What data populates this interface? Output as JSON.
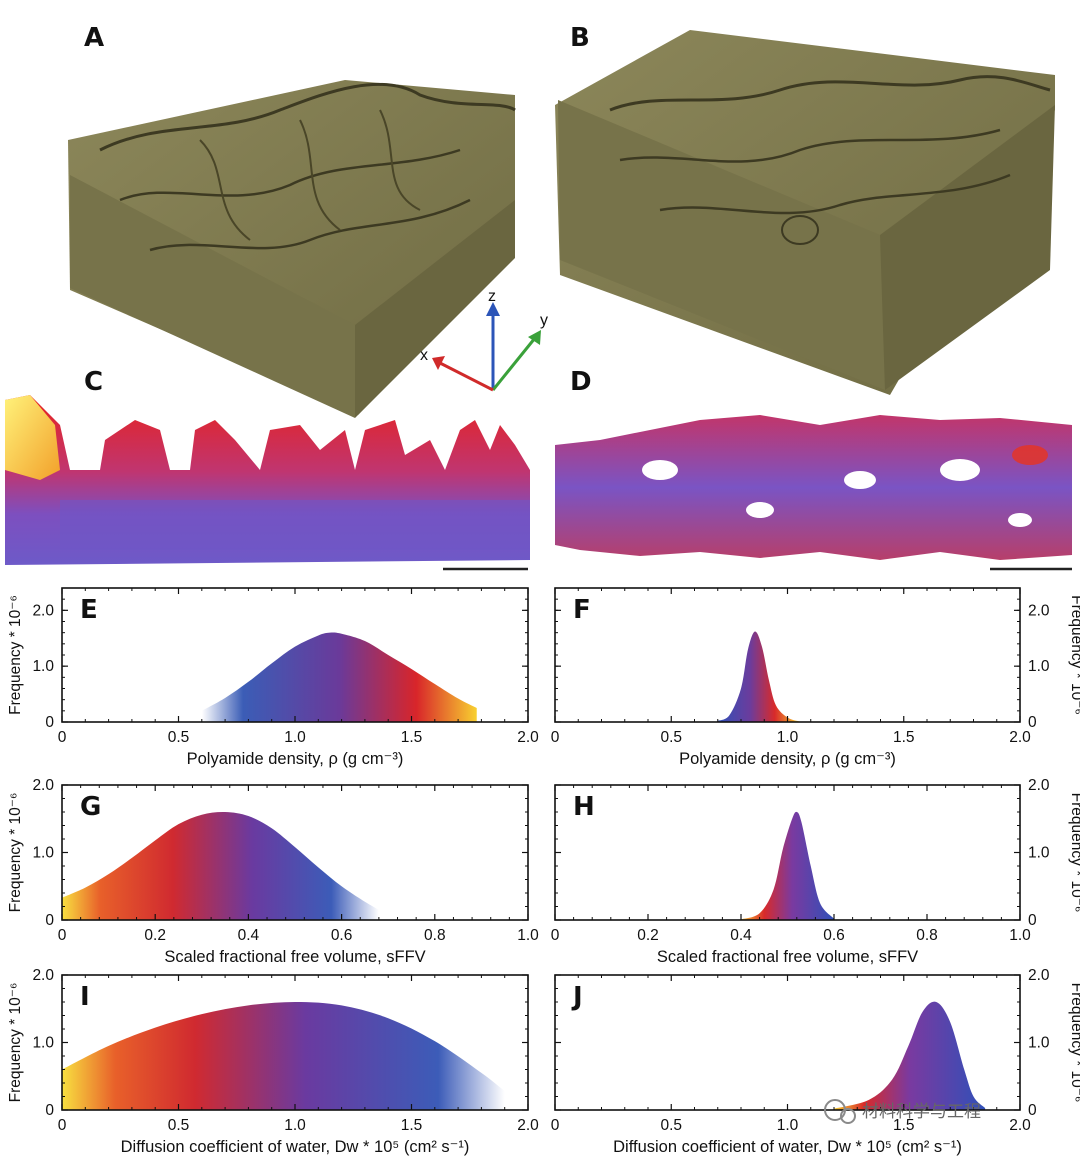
{
  "panel_labels": {
    "A": "A",
    "B": "B",
    "C": "C",
    "D": "D"
  },
  "axes_triad": {
    "x": "x",
    "y": "y",
    "z": "z",
    "x_color": "#d02a2a",
    "y_color": "#3aa13a",
    "z_color": "#2c55b8"
  },
  "surface_color": "#7f7a4c",
  "watermark": "材料科学与工程",
  "chart_data": [
    {
      "id": "E",
      "label": "E",
      "type": "area",
      "xlabel": "Polyamide density, ρ (g cm⁻³)",
      "ylabel": "Frequency * 10⁻⁶",
      "xlim": [
        0,
        2.0
      ],
      "ylim": [
        0,
        2.4
      ],
      "xticks": [
        "0",
        "0.5",
        "1.0",
        "1.5",
        "2.0"
      ],
      "yticks": [
        "0",
        "1.0",
        "2.0"
      ],
      "y_axis_side": "left",
      "x": [
        0.6,
        0.7,
        0.8,
        0.9,
        1.0,
        1.1,
        1.15,
        1.2,
        1.3,
        1.4,
        1.5,
        1.6,
        1.7,
        1.78
      ],
      "y": [
        0.2,
        0.43,
        0.72,
        1.05,
        1.35,
        1.55,
        1.6,
        1.58,
        1.45,
        1.2,
        0.95,
        0.68,
        0.42,
        0.25
      ]
    },
    {
      "id": "F",
      "label": "F",
      "type": "area",
      "xlabel": "Polyamide density, ρ (g cm⁻³)",
      "ylabel": "Frequency * 10⁻⁶",
      "xlim": [
        0,
        2.0
      ],
      "ylim": [
        0,
        2.4
      ],
      "xticks": [
        "0",
        "0.5",
        "1.0",
        "1.5",
        "2.0"
      ],
      "yticks": [
        "0",
        "1.0",
        "2.0"
      ],
      "y_axis_side": "right",
      "x": [
        0.7,
        0.75,
        0.8,
        0.83,
        0.86,
        0.89,
        0.92,
        0.95,
        1.0,
        1.05
      ],
      "y": [
        0.02,
        0.12,
        0.6,
        1.3,
        1.62,
        1.35,
        0.75,
        0.3,
        0.08,
        0.01
      ]
    },
    {
      "id": "G",
      "label": "G",
      "type": "area",
      "xlabel": "Scaled fractional free volume, sFFV",
      "ylabel": "Frequency * 10⁻⁶",
      "xlim": [
        0,
        1.0
      ],
      "ylim": [
        0,
        2.0
      ],
      "xticks": [
        "0",
        "0.2",
        "0.4",
        "0.6",
        "0.8",
        "1.0"
      ],
      "yticks": [
        "0",
        "1.0",
        "2.0"
      ],
      "y_axis_side": "left",
      "x": [
        0,
        0.05,
        0.1,
        0.15,
        0.2,
        0.25,
        0.3,
        0.35,
        0.4,
        0.45,
        0.5,
        0.55,
        0.6,
        0.65,
        0.68
      ],
      "y": [
        0.33,
        0.48,
        0.68,
        0.92,
        1.18,
        1.42,
        1.56,
        1.6,
        1.54,
        1.36,
        1.08,
        0.78,
        0.5,
        0.27,
        0.15
      ]
    },
    {
      "id": "H",
      "label": "H",
      "type": "area",
      "xlabel": "Scaled fractional free volume, sFFV",
      "ylabel": "Frequency * 10⁻⁶",
      "xlim": [
        0,
        1.0
      ],
      "ylim": [
        0,
        2.0
      ],
      "xticks": [
        "0",
        "0.2",
        "0.4",
        "0.6",
        "0.8",
        "1.0"
      ],
      "yticks": [
        "0",
        "1.0",
        "2.0"
      ],
      "y_axis_side": "right",
      "x": [
        0.4,
        0.44,
        0.47,
        0.49,
        0.51,
        0.52,
        0.53,
        0.55,
        0.57,
        0.6
      ],
      "y": [
        0.01,
        0.1,
        0.45,
        1.05,
        1.5,
        1.6,
        1.45,
        0.8,
        0.25,
        0.02
      ]
    },
    {
      "id": "I",
      "label": "I",
      "type": "area",
      "xlabel": "Diffusion coefficient of water, Dw * 10⁵ (cm² s⁻¹)",
      "ylabel": "Frequency * 10⁻⁶",
      "xlim": [
        0,
        2.0
      ],
      "ylim": [
        0,
        2.0
      ],
      "xticks": [
        "0",
        "0.5",
        "1.0",
        "1.5",
        "2.0"
      ],
      "yticks": [
        "0",
        "1.0",
        "2.0"
      ],
      "y_axis_side": "left",
      "x": [
        0,
        0.2,
        0.4,
        0.6,
        0.8,
        1.0,
        1.2,
        1.4,
        1.6,
        1.8,
        1.9
      ],
      "y": [
        0.6,
        0.95,
        1.22,
        1.42,
        1.55,
        1.6,
        1.55,
        1.36,
        1.02,
        0.55,
        0.28
      ]
    },
    {
      "id": "J",
      "label": "J",
      "type": "area",
      "xlabel": "Diffusion coefficient of water, Dw * 10⁵ (cm² s⁻¹)",
      "ylabel": "Frequency * 10⁻⁶",
      "xlim": [
        0,
        2.0
      ],
      "ylim": [
        0,
        2.0
      ],
      "xticks": [
        "0",
        "0.5",
        "1.0",
        "1.5",
        "2.0"
      ],
      "yticks": [
        "0",
        "1.0",
        "2.0"
      ],
      "y_axis_side": "right",
      "x": [
        1.2,
        1.35,
        1.45,
        1.52,
        1.58,
        1.64,
        1.7,
        1.76,
        1.8,
        1.85
      ],
      "y": [
        0.02,
        0.15,
        0.45,
        0.95,
        1.45,
        1.6,
        1.3,
        0.6,
        0.2,
        0.03
      ]
    }
  ]
}
